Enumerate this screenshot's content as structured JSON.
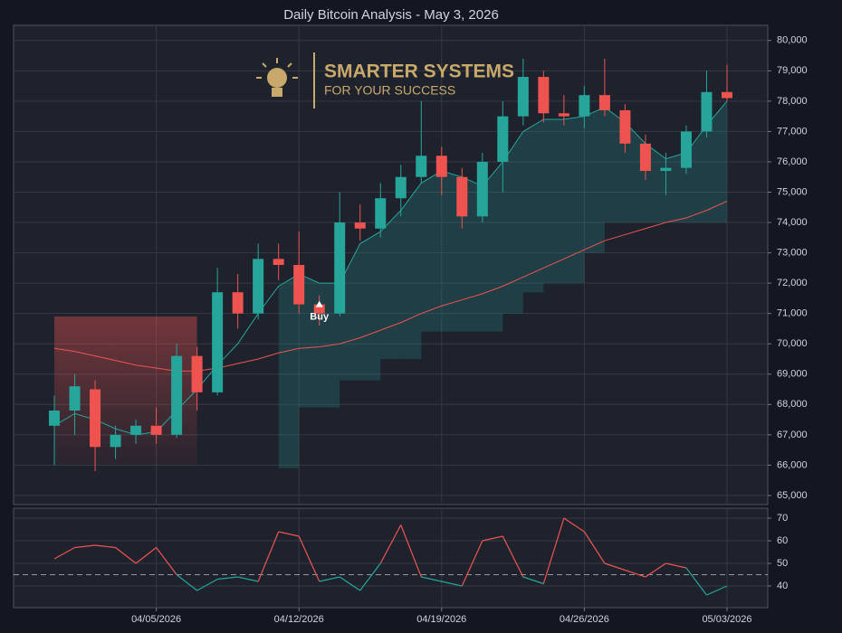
{
  "chart_data": [
    {
      "type": "candlestick",
      "title": "Daily Bitcoin Analysis - May 3, 2026",
      "logo": {
        "title": "SMARTER SYSTEMS",
        "subtitle": "FOR YOUR SUCCESS",
        "color": "#c9a96b"
      },
      "x": [
        "03/31/2026",
        "04/01/2026",
        "04/02/2026",
        "04/03/2026",
        "04/04/2026",
        "04/05/2026",
        "04/06/2026",
        "04/07/2026",
        "04/08/2026",
        "04/09/2026",
        "04/10/2026",
        "04/11/2026",
        "04/12/2026",
        "04/13/2026",
        "04/14/2026",
        "04/15/2026",
        "04/16/2026",
        "04/17/2026",
        "04/18/2026",
        "04/19/2026",
        "04/20/2026",
        "04/21/2026",
        "04/22/2026",
        "04/23/2026",
        "04/24/2026",
        "04/25/2026",
        "04/26/2026",
        "04/27/2026",
        "04/28/2026",
        "04/29/2026",
        "04/30/2026",
        "05/01/2026",
        "05/02/2026",
        "05/03/2026"
      ],
      "open": [
        67300,
        67800,
        68500,
        66600,
        67000,
        67300,
        67000,
        69600,
        68400,
        71700,
        71000,
        72800,
        72600,
        71300,
        71000,
        74000,
        73800,
        74800,
        75500,
        76200,
        75500,
        74200,
        76000,
        77500,
        78800,
        77600,
        77500,
        78200,
        77700,
        76600,
        75700,
        75800,
        77000,
        78300
      ],
      "high": [
        68300,
        69000,
        68800,
        67300,
        67500,
        67900,
        70000,
        69900,
        72500,
        72300,
        73300,
        73300,
        73700,
        71600,
        75000,
        74600,
        75300,
        75900,
        78000,
        76500,
        75800,
        76300,
        78000,
        79400,
        79000,
        78200,
        78500,
        79400,
        77900,
        76900,
        76300,
        77200,
        79000,
        79200
      ],
      "low": [
        66000,
        67000,
        65800,
        66200,
        66700,
        66700,
        66900,
        67800,
        68300,
        70500,
        70800,
        72100,
        71000,
        70600,
        70900,
        73400,
        73500,
        74200,
        75300,
        74900,
        73800,
        74000,
        75000,
        77200,
        77300,
        77200,
        77100,
        77500,
        76300,
        75400,
        74900,
        75600,
        76800,
        78000
      ],
      "close": [
        67800,
        68600,
        66600,
        67000,
        67300,
        67000,
        69600,
        68400,
        71700,
        71000,
        72800,
        72600,
        71300,
        71000,
        74000,
        73800,
        74800,
        75500,
        76200,
        75500,
        74200,
        76000,
        77500,
        78800,
        77600,
        77500,
        78200,
        77700,
        76600,
        75700,
        75800,
        77000,
        78300,
        78100
      ],
      "up_color": "#26a69a",
      "down_color": "#ef5350",
      "lines": [
        {
          "color": "#26a69a",
          "values": [
            67300,
            67700,
            67500,
            67200,
            67000,
            67100,
            67800,
            68500,
            69300,
            70000,
            71000,
            71900,
            72300,
            72000,
            72000,
            73300,
            73700,
            74400,
            75300,
            75700,
            75500,
            75200,
            76000,
            77000,
            77400,
            77400,
            77500,
            77800,
            77300,
            76600,
            76100,
            76300,
            77200,
            78000
          ]
        },
        {
          "color": "#ef5350",
          "values": [
            69850,
            69750,
            69600,
            69450,
            69300,
            69200,
            69100,
            69100,
            69200,
            69350,
            69500,
            69700,
            69850,
            69900,
            70000,
            70200,
            70450,
            70700,
            71000,
            71250,
            71450,
            71650,
            71900,
            72200,
            72500,
            72800,
            73100,
            73400,
            73600,
            73800,
            74000,
            74150,
            74400,
            74700
          ]
        }
      ],
      "band": {
        "color": "#26a69a",
        "values": [
          null,
          null,
          null,
          null,
          null,
          null,
          null,
          null,
          null,
          null,
          null,
          65900,
          67900,
          67900,
          68800,
          68800,
          69500,
          69500,
          70400,
          70400,
          70400,
          70400,
          71000,
          71700,
          72000,
          72000,
          73000,
          74000,
          74000,
          74000,
          74000,
          74000,
          74000,
          74000
        ]
      },
      "zone": {
        "start": "03/31/2026",
        "end": "04/07/2026",
        "top": 70900,
        "bottom": 66000,
        "color": "#ef5350"
      },
      "annotations": [
        {
          "text": "Buy",
          "x": "04/13/2026",
          "y": 71300
        }
      ],
      "xlim": [
        "03/29/2026",
        "05/05/2026"
      ],
      "xticks": [
        "04/05/2026",
        "04/12/2026",
        "04/19/2026",
        "04/26/2026",
        "05/03/2026"
      ],
      "ylim": [
        64700,
        80500
      ],
      "yticks": [
        {
          "value": 65000,
          "label": "65,000"
        },
        {
          "value": 66000,
          "label": "66,000"
        },
        {
          "value": 67000,
          "label": "67,000"
        },
        {
          "value": 68000,
          "label": "68,000"
        },
        {
          "value": 69000,
          "label": "69,000"
        },
        {
          "value": 70000,
          "label": "70,000"
        },
        {
          "value": 71000,
          "label": "71,000"
        },
        {
          "value": 72000,
          "label": "72,000"
        },
        {
          "value": 73000,
          "label": "73,000"
        },
        {
          "value": 74000,
          "label": "74,000"
        },
        {
          "value": 75000,
          "label": "75,000"
        },
        {
          "value": 76000,
          "label": "76,000"
        },
        {
          "value": 77000,
          "label": "77,000"
        },
        {
          "value": 78000,
          "label": "78,000"
        },
        {
          "value": 79000,
          "label": "79,000"
        },
        {
          "value": 80000,
          "label": "80,000"
        }
      ],
      "grid": true
    },
    {
      "type": "line",
      "values": [
        52,
        57,
        58,
        57,
        50,
        57,
        45,
        38,
        43,
        44,
        42,
        64,
        62,
        42,
        44,
        38,
        50,
        67,
        44,
        42,
        40,
        60,
        62,
        44,
        41,
        70,
        64,
        50,
        47,
        44,
        50,
        48,
        36,
        40
      ],
      "up_color": "#ef5350",
      "down_color": "#26a69a",
      "threshold": 45,
      "ylim": [
        30.4,
        74.4
      ],
      "yticks": [
        40,
        50,
        60,
        70
      ],
      "grid": true
    }
  ]
}
